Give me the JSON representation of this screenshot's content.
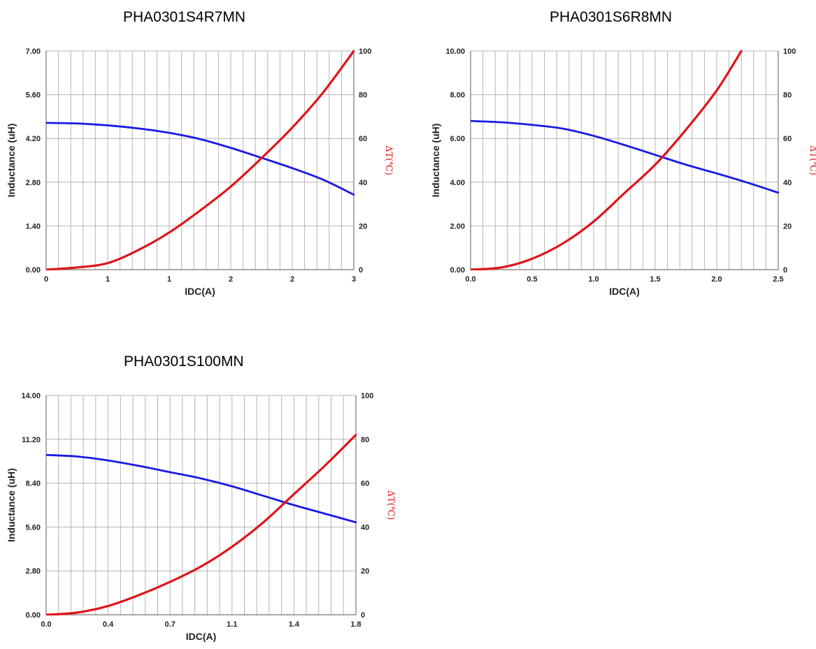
{
  "chart_data": [
    {
      "type": "line",
      "title": "PHA0301S4R7MN",
      "xlabel": "IDC(A)",
      "ylabel": "Inductance (uH)",
      "y2label": "ΔT(℃)",
      "x_tick_labels": [
        "0",
        "1",
        "1",
        "2",
        "2",
        "3"
      ],
      "y_tick_labels": [
        "0.00",
        "1.40",
        "2.80",
        "4.20",
        "5.60",
        "7.00"
      ],
      "y2_tick_labels": [
        "0",
        "20",
        "40",
        "60",
        "80",
        "100"
      ],
      "xlim": [
        0,
        2.5
      ],
      "ylim": [
        0,
        7
      ],
      "y2lim": [
        0,
        100
      ],
      "grid": true,
      "series": [
        {
          "axis": "left",
          "color": "#1a1ae6",
          "x": [
            0,
            0.25,
            0.5,
            0.75,
            1.0,
            1.25,
            1.5,
            1.75,
            2.0,
            2.25,
            2.5
          ],
          "y": [
            4.7,
            4.68,
            4.62,
            4.52,
            4.38,
            4.18,
            3.9,
            3.58,
            3.25,
            2.88,
            2.4
          ]
        },
        {
          "axis": "right",
          "color": "#e0141b",
          "x": [
            0,
            0.25,
            0.5,
            0.75,
            1.0,
            1.25,
            1.5,
            1.75,
            2.0,
            2.25,
            2.5
          ],
          "y": [
            0,
            1,
            3,
            9,
            17,
            27,
            38,
            51,
            65,
            81,
            100
          ]
        }
      ]
    },
    {
      "type": "line",
      "title": "PHA0301S6R8MN",
      "xlabel": "IDC(A)",
      "ylabel": "Inductance (uH)",
      "y2label": "ΔT(℃)",
      "x_tick_labels": [
        "0.0",
        "0.5",
        "1.0",
        "1.5",
        "2.0",
        "2.5"
      ],
      "y_tick_labels": [
        "0.00",
        "2.00",
        "4.00",
        "6.00",
        "8.00",
        "10.00"
      ],
      "y2_tick_labels": [
        "0",
        "20",
        "40",
        "60",
        "80",
        "100"
      ],
      "xlim": [
        0,
        2.5
      ],
      "ylim": [
        0,
        10
      ],
      "y2lim": [
        0,
        100
      ],
      "grid": true,
      "series": [
        {
          "axis": "left",
          "color": "#1a1ae6",
          "x": [
            0,
            0.25,
            0.5,
            0.75,
            1.0,
            1.25,
            1.5,
            1.75,
            2.0,
            2.25,
            2.5
          ],
          "y": [
            6.8,
            6.74,
            6.62,
            6.45,
            6.12,
            5.7,
            5.25,
            4.8,
            4.4,
            3.98,
            3.52
          ]
        },
        {
          "axis": "right",
          "color": "#e0141b",
          "x": [
            0,
            0.25,
            0.5,
            0.75,
            1.0,
            1.25,
            1.5,
            1.75,
            2.0,
            2.2
          ],
          "y": [
            0,
            1,
            5,
            12,
            22,
            35,
            48,
            64,
            82,
            100
          ]
        }
      ]
    },
    {
      "type": "line",
      "title": "PHA0301S100MN",
      "xlabel": "IDC(A)",
      "ylabel": "Inductance (uH)",
      "y2label": "ΔT(℃)",
      "x_tick_labels": [
        "0.0",
        "0.4",
        "0.7",
        "1.1",
        "1.4",
        "1.8"
      ],
      "y_tick_labels": [
        "0.00",
        "2.80",
        "5.60",
        "8.40",
        "11.20",
        "14.00"
      ],
      "y2_tick_labels": [
        "0",
        "20",
        "40",
        "60",
        "80",
        "100"
      ],
      "xlim": [
        0,
        1.8
      ],
      "ylim": [
        0,
        14
      ],
      "y2lim": [
        0,
        100
      ],
      "grid": true,
      "series": [
        {
          "axis": "left",
          "color": "#1a1ae6",
          "x": [
            0,
            0.18,
            0.36,
            0.54,
            0.72,
            0.9,
            1.08,
            1.26,
            1.44,
            1.62,
            1.8
          ],
          "y": [
            10.2,
            10.1,
            9.85,
            9.5,
            9.1,
            8.7,
            8.2,
            7.6,
            7.0,
            6.45,
            5.9
          ]
        },
        {
          "axis": "right",
          "color": "#e0141b",
          "x": [
            0,
            0.18,
            0.36,
            0.54,
            0.72,
            0.9,
            1.08,
            1.26,
            1.44,
            1.62,
            1.8
          ],
          "y": [
            0,
            1,
            4,
            9,
            15,
            22,
            31,
            42,
            55,
            68,
            82
          ]
        }
      ]
    }
  ]
}
